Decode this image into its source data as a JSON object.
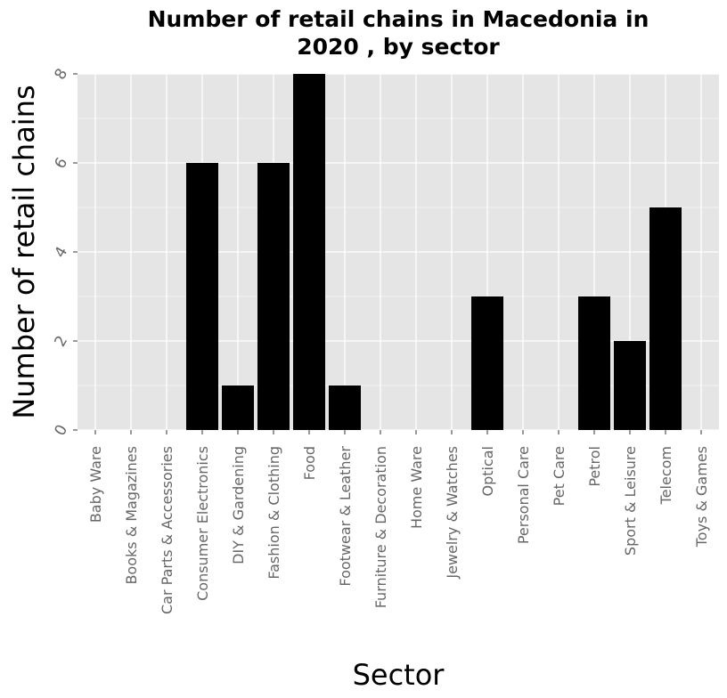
{
  "chart_data": {
    "type": "bar",
    "title": "Number of retail chains in Macedonia in 2020 , by sector",
    "title_lines": [
      "Number of retail chains in Macedonia in",
      "2020 , by sector"
    ],
    "xlabel": "Sector",
    "ylabel": "Number of retail chains",
    "categories": [
      "Baby Ware",
      "Books & Magazines",
      "Car Parts & Accessories",
      "Consumer Electronics",
      "DIY & Gardening",
      "Fashion & Clothing",
      "Food",
      "Footwear & Leather",
      "Furniture & Decoration",
      "Home Ware",
      "Jewelry & Watches",
      "Optical",
      "Personal Care",
      "Pet Care",
      "Petrol",
      "Sport & Leisure",
      "Telecom",
      "Toys & Games"
    ],
    "values": [
      0,
      0,
      0,
      6,
      1,
      6,
      8,
      1,
      0,
      0,
      0,
      3,
      0,
      0,
      3,
      2,
      5,
      0
    ],
    "ylim": [
      0,
      8
    ],
    "yticks": [
      0,
      2,
      4,
      6,
      8
    ],
    "grid": true,
    "colors": {
      "bar": "#000000",
      "panel": "#e5e5e5",
      "grid": "#ffffff",
      "tick_text": "#666666"
    }
  }
}
